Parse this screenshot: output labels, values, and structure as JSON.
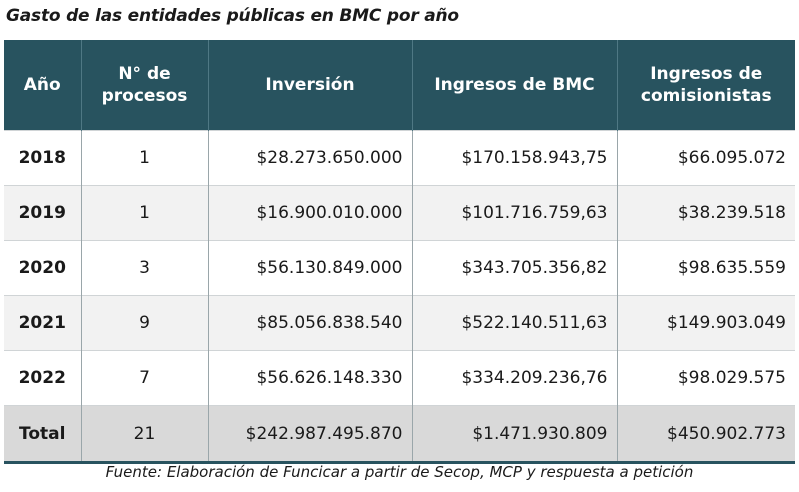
{
  "title": "Gasto de las entidades públicas en BMC por año",
  "colors": {
    "header_bg": "#28535f",
    "header_text": "#ffffff",
    "row_alt": "#f2f2f2",
    "total_row": "#d9d9d9"
  },
  "table": {
    "headers": {
      "year": "Año",
      "processes": "N° de procesos",
      "investment": "Inversión",
      "bmc_income": "Ingresos de BMC",
      "commission_income": "Ingresos de comisionistas"
    },
    "rows": [
      {
        "year": "2018",
        "processes": "1",
        "investment": "$28.273.650.000",
        "bmc_income": "$170.158.943,75",
        "commission_income": "$66.095.072"
      },
      {
        "year": "2019",
        "processes": "1",
        "investment": "$16.900.010.000",
        "bmc_income": "$101.716.759,63",
        "commission_income": "$38.239.518"
      },
      {
        "year": "2020",
        "processes": "3",
        "investment": "$56.130.849.000",
        "bmc_income": "$343.705.356,82",
        "commission_income": "$98.635.559"
      },
      {
        "year": "2021",
        "processes": "9",
        "investment": "$85.056.838.540",
        "bmc_income": "$522.140.511,63",
        "commission_income": "$149.903.049"
      },
      {
        "year": "2022",
        "processes": "7",
        "investment": "$56.626.148.330",
        "bmc_income": "$334.209.236,76",
        "commission_income": "$98.029.575"
      }
    ],
    "total": {
      "year": "Total",
      "processes": "21",
      "investment": "$242.987.495.870",
      "bmc_income": "$1.471.930.809",
      "commission_income": "$450.902.773"
    }
  },
  "source": "Fuente: Elaboración de Funcicar a partir de Secop, MCP y respuesta a petición"
}
